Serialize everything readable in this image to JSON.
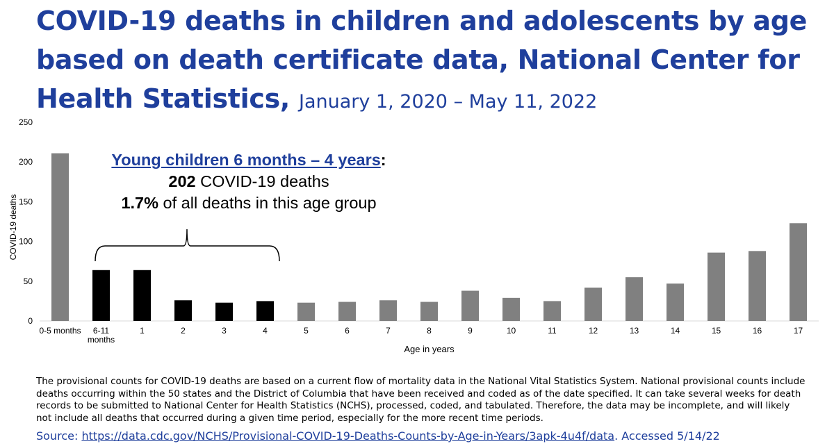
{
  "title": {
    "main": "COVID-19 deaths in children and adolescents by age based on death certificate data, National Center for Health Statistics,",
    "date_range": "January 1, 2020 – May 11, 2022"
  },
  "annotation": {
    "heading": "Young children 6 months – 4 years",
    "colon": ":",
    "deaths_number": "202",
    "deaths_text": " COVID-19 deaths",
    "pct_number": "1.7%",
    "pct_text": " of all deaths in this age group"
  },
  "chart_data": {
    "type": "bar",
    "ylabel": "COVID-19 deaths",
    "xlabel": "Age in years",
    "ylim": [
      0,
      250
    ],
    "yticks": [
      0,
      50,
      100,
      150,
      200,
      250
    ],
    "grid": false,
    "categories": [
      "0-5 months",
      "6-11 months",
      "1",
      "2",
      "3",
      "4",
      "5",
      "6",
      "7",
      "8",
      "9",
      "10",
      "11",
      "12",
      "13",
      "14",
      "15",
      "16",
      "17"
    ],
    "values": [
      211,
      64,
      64,
      26,
      23,
      25,
      23,
      24,
      26,
      24,
      38,
      29,
      25,
      42,
      55,
      47,
      86,
      88,
      123
    ],
    "highlighted": [
      "6-11 months",
      "1",
      "2",
      "3",
      "4"
    ],
    "colors": {
      "default": "#808080",
      "highlight": "#000000"
    }
  },
  "footnote": "The provisional counts for COVID-19 deaths are based on a current flow of mortality data in the National Vital Statistics System. National provisional counts include deaths occurring within the 50 states and the District of Columbia that have been received and coded as of the date specified. It can take several weeks for death records to be submitted to National Center for Health Statistics (NCHS), processed, coded, and tabulated. Therefore, the data may be incomplete, and will likely not include all deaths that occurred during a given time period, especially for the more recent time periods.",
  "source": {
    "label": "Source: ",
    "url": "https://data.cdc.gov/NCHS/Provisional-COVID-19-Deaths-Counts-by-Age-in-Years/3apk-4u4f/data",
    "accessed": ". Accessed 5/14/22"
  }
}
